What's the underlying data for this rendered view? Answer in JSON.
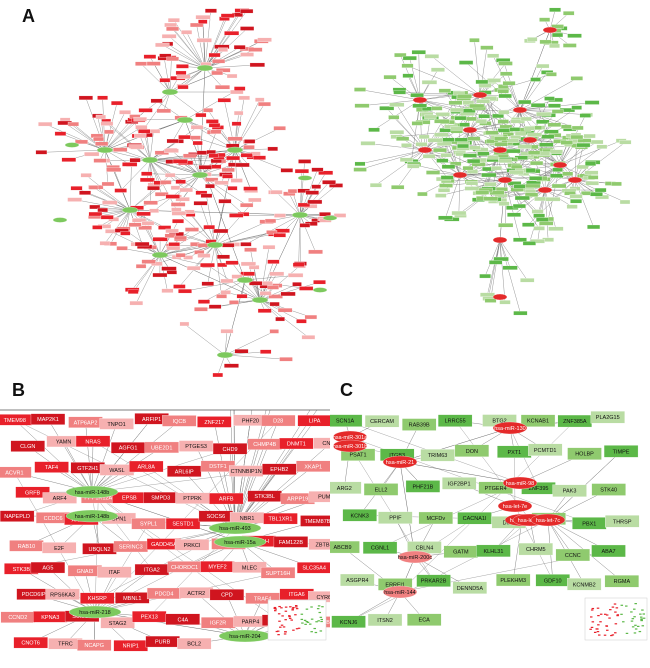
{
  "panels": [
    {
      "id": "A",
      "letter": "A"
    },
    {
      "id": "B",
      "letter": "B"
    },
    {
      "id": "C",
      "letter": "C"
    }
  ],
  "panelB": {
    "mirna": [
      "hsa-miR-148b",
      "hsa-miR-148b",
      "hsa-miR-493",
      "hsa-miR-15a",
      "hsa-miR-218",
      "hsa-miR-204"
    ],
    "genes": [
      "TMEM98",
      "MAP2K1",
      "ATP6AP2",
      "TNPO1",
      "ARFIP1",
      "IQCB",
      "ZNF217",
      "PHF20",
      "D28",
      "LIPA",
      "CLGN",
      "YAMN",
      "NRAS",
      "AGFG1",
      "UBE2D1",
      "PTGES3",
      "CHD9",
      "CHMP4B",
      "DNMT1",
      "CNIH4",
      "ACVR1",
      "TAF4",
      "GTF2H1",
      "WASL",
      "ARL8A",
      "ARL6IP",
      "DSTF1",
      "CTNNBIP1N",
      "EPHB2",
      "XKAP1",
      "GRFB",
      "ARF4",
      "PPP1R12A",
      "EPSB",
      "SMPD3",
      "PTPRK",
      "ARFB",
      "STK3BL",
      "ARPP19",
      "PUM1",
      "NAPEPLD",
      "CCDC6",
      "ANKIB1",
      "GPN1",
      "SYPL1",
      "SESTD1",
      "SOCS6",
      "NBR1",
      "TBL1XR1",
      "TMEM87B",
      "RAB10",
      "E2F",
      "UBQLN2",
      "SERINC3",
      "GADD45A",
      "PRKCI",
      "WDR82",
      "YWHAH",
      "FAM122B",
      "ZBTB33",
      "STK3B",
      "AG5",
      "GNAI3",
      "ITAF",
      "ITGA2",
      "CHORDC1",
      "MYEF2",
      "MLEC",
      "SUPT16H",
      "SLC35A4",
      "PDCD6IP",
      "RPS6KA3",
      "KHSRP",
      "MBNL1",
      "PDCD4",
      "ACTR2",
      "CPD",
      "TRAF4",
      "ITGA6",
      "CYR61",
      "CCND2",
      "KPNA3",
      "SUMO3",
      "STAG2",
      "PEX13",
      "C4A",
      "IGF2R",
      "PARP4",
      "INPP5A",
      "CHMP1B",
      "CNOT6",
      "TFRC",
      "NCAPG",
      "NRIP1",
      "PURB",
      "BCL2"
    ],
    "green_labels": [
      "hsa-miR-148b",
      "hsa-miR-493",
      "hsa-miR-218",
      "hsa-miR-204"
    ]
  },
  "panelC": {
    "mirna": [
      "hsa-miR-21",
      "hsa-miR-301a",
      "hsa-miR-301b",
      "hsa-miR-130",
      "hsa-miR-98",
      "hsa-let-7e",
      "hsa-let-7b",
      "hsa-let-7d",
      "hsa-let-7c",
      "hsa-miR-200c",
      "hsa-miR-144"
    ],
    "genes": [
      "SCN1A",
      "CERCAM",
      "RAB39B",
      "LRRC55",
      "BTG2",
      "KCNAB1",
      "ZNF385A",
      "PLA2G15",
      "PSAT1",
      "ITGB3",
      "TRIM63",
      "DON",
      "PXT1",
      "PCMTD1",
      "HOLBP",
      "TIMPE",
      "ARG2",
      "ELL2",
      "PHF21B",
      "IGF2BP1",
      "PTGER4",
      "ZNF395",
      "PAK3",
      "STK40",
      "KCNK3",
      "PPIF",
      "MCFDv",
      "CACNA1I",
      "DMD",
      "CYP46A1",
      "PBX1",
      "THRSP",
      "ABCB9",
      "CGNL1",
      "CBLN4",
      "GATM",
      "KLHL31",
      "CHRM5",
      "CCNC",
      "ABA7",
      "ASGPR4",
      "ERRFI1",
      "PRKAR2B",
      "DENND5A",
      "PLEKHM3",
      "GDF10",
      "KCNMB2",
      "RGMA",
      "KCNJ6",
      "ITSN2",
      "ECA"
    ]
  },
  "colors": {
    "red_node": "#e8202a",
    "red_dark": "#d0151f",
    "pink_node": "#f08080",
    "light_pink": "#f6b0b0",
    "green_node": "#5cb848",
    "light_green": "#b9dca3",
    "mid_green": "#8fca6e",
    "mirna_green": "#7dc95e",
    "mirna_red": "#e42a2a",
    "edge": "#6b6b6b"
  }
}
